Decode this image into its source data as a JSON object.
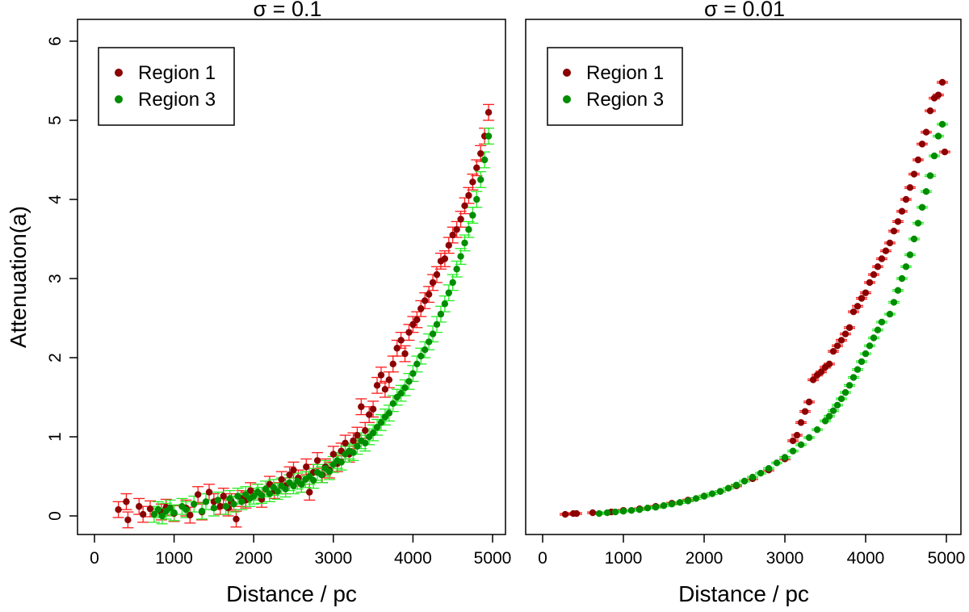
{
  "chart_data": [
    {
      "type": "scatter",
      "title": "σ = 0.1",
      "xlabel": "Distance / pc",
      "ylabel": "Attenuation(a)",
      "xlim": [
        -200,
        5200
      ],
      "ylim": [
        -0.23,
        6.2
      ],
      "xticks": [
        0,
        1000,
        2000,
        3000,
        4000,
        5000
      ],
      "yticks": [
        0,
        1,
        2,
        3,
        4,
        5,
        6
      ],
      "error_bars": true,
      "error_sigma": 0.1,
      "legend_position": "top-left",
      "series": [
        {
          "name": "Region 1",
          "point_color": "#8b0000",
          "errorbar_color": "#ff1a1a",
          "x": [
            300,
            400,
            420,
            560,
            610,
            700,
            840,
            900,
            1000,
            1150,
            1200,
            1300,
            1350,
            1440,
            1500,
            1580,
            1620,
            1680,
            1720,
            1780,
            1850,
            1900,
            1960,
            2050,
            2100,
            2200,
            2260,
            2350,
            2400,
            2450,
            2500,
            2560,
            2600,
            2660,
            2700,
            2750,
            2800,
            2860,
            2900,
            2950,
            3000,
            3050,
            3100,
            3150,
            3200,
            3250,
            3300,
            3350,
            3400,
            3450,
            3500,
            3550,
            3600,
            3650,
            3700,
            3750,
            3800,
            3850,
            3900,
            3950,
            4000,
            4050,
            4100,
            4150,
            4200,
            4250,
            4300,
            4350,
            4400,
            4450,
            4500,
            4550,
            4600,
            4650,
            4700,
            4750,
            4800,
            4850,
            4900,
            4950
          ],
          "y": [
            0.08,
            0.18,
            -0.05,
            0.12,
            0.02,
            0.09,
            0.05,
            0.11,
            0.03,
            0.1,
            0.01,
            0.27,
            0.05,
            0.3,
            0.18,
            0.12,
            0.25,
            0.1,
            0.18,
            -0.04,
            0.22,
            0.2,
            0.32,
            0.3,
            0.21,
            0.4,
            0.32,
            0.46,
            0.38,
            0.52,
            0.58,
            0.48,
            0.4,
            0.62,
            0.3,
            0.55,
            0.7,
            0.52,
            0.62,
            0.58,
            0.78,
            0.66,
            0.82,
            0.92,
            0.78,
            0.95,
            1.02,
            1.38,
            1.08,
            1.28,
            1.35,
            1.65,
            1.78,
            1.6,
            1.72,
            1.92,
            2.12,
            2.22,
            2.05,
            2.32,
            2.42,
            2.48,
            2.62,
            2.72,
            2.8,
            2.95,
            3.05,
            3.22,
            3.25,
            3.42,
            3.55,
            3.62,
            3.75,
            3.92,
            4.05,
            4.22,
            4.4,
            4.58,
            4.8,
            5.1
          ]
        },
        {
          "name": "Region 3",
          "point_color": "#008c00",
          "errorbar_color": "#22ee22",
          "x": [
            750,
            800,
            850,
            900,
            950,
            1000,
            1100,
            1150,
            1250,
            1350,
            1400,
            1500,
            1550,
            1650,
            1700,
            1750,
            1800,
            1850,
            1900,
            1950,
            2000,
            2050,
            2100,
            2150,
            2200,
            2250,
            2300,
            2350,
            2400,
            2450,
            2500,
            2550,
            2600,
            2650,
            2700,
            2750,
            2800,
            2850,
            2900,
            2950,
            3000,
            3050,
            3100,
            3150,
            3200,
            3250,
            3300,
            3350,
            3400,
            3450,
            3500,
            3550,
            3600,
            3650,
            3700,
            3750,
            3800,
            3850,
            3900,
            3950,
            4000,
            4050,
            4100,
            4150,
            4200,
            4250,
            4300,
            4350,
            4400,
            4450,
            4500,
            4550,
            4600,
            4650,
            4700,
            4750,
            4800,
            4850,
            4900,
            4950
          ],
          "y": [
            0.02,
            0.08,
            0.0,
            0.06,
            0.1,
            0.04,
            0.12,
            0.08,
            0.15,
            0.06,
            0.18,
            0.1,
            0.2,
            0.12,
            0.22,
            0.15,
            0.25,
            0.18,
            0.27,
            0.22,
            0.25,
            0.3,
            0.26,
            0.34,
            0.28,
            0.36,
            0.31,
            0.38,
            0.34,
            0.42,
            0.38,
            0.44,
            0.4,
            0.46,
            0.5,
            0.45,
            0.55,
            0.52,
            0.6,
            0.56,
            0.65,
            0.7,
            0.68,
            0.78,
            0.82,
            0.8,
            0.88,
            0.95,
            0.92,
            1.0,
            1.05,
            1.12,
            1.18,
            1.25,
            1.3,
            1.42,
            1.5,
            1.55,
            1.62,
            1.7,
            1.8,
            1.92,
            2.02,
            2.1,
            2.2,
            2.3,
            2.42,
            2.55,
            2.68,
            2.82,
            2.95,
            3.12,
            3.28,
            3.45,
            3.62,
            3.8,
            4.0,
            4.25,
            4.5,
            4.8
          ]
        }
      ]
    },
    {
      "type": "scatter",
      "title": "σ = 0.01",
      "xlabel": "Distance / pc",
      "ylabel": "",
      "xlim": [
        -200,
        5200
      ],
      "ylim": [
        -0.23,
        6.2
      ],
      "xticks": [
        0,
        1000,
        2000,
        3000,
        4000,
        5000
      ],
      "yticks": [],
      "error_bars": true,
      "error_sigma": 0.01,
      "legend_position": "top-left",
      "series": [
        {
          "name": "Region 1",
          "point_color": "#8b0000",
          "errorbar_color": "#ff1a1a",
          "x": [
            280,
            380,
            420,
            620,
            850,
            1000,
            1200,
            1400,
            1600,
            1800,
            2000,
            2200,
            2400,
            2600,
            2800,
            3000,
            3100,
            3150,
            3200,
            3250,
            3300,
            3350,
            3400,
            3450,
            3500,
            3550,
            3600,
            3650,
            3700,
            3750,
            3800,
            3850,
            3900,
            3950,
            4000,
            4050,
            4100,
            4150,
            4200,
            4250,
            4300,
            4350,
            4400,
            4450,
            4500,
            4550,
            4600,
            4650,
            4700,
            4750,
            4800,
            4850,
            4900,
            4950,
            4980
          ],
          "y": [
            0.02,
            0.03,
            0.03,
            0.04,
            0.05,
            0.07,
            0.09,
            0.12,
            0.16,
            0.2,
            0.25,
            0.31,
            0.38,
            0.47,
            0.58,
            0.72,
            0.95,
            1.02,
            1.18,
            1.32,
            1.44,
            1.72,
            1.78,
            1.82,
            1.88,
            1.92,
            2.08,
            2.15,
            2.22,
            2.3,
            2.38,
            2.58,
            2.65,
            2.75,
            2.82,
            2.95,
            3.05,
            3.15,
            3.25,
            3.35,
            3.45,
            3.6,
            3.72,
            3.85,
            4.0,
            4.15,
            4.32,
            4.5,
            4.7,
            4.85,
            5.12,
            5.28,
            5.32,
            5.48,
            4.6
          ]
        },
        {
          "name": "Region 3",
          "point_color": "#008c00",
          "errorbar_color": "#22ee22",
          "x": [
            700,
            800,
            900,
            1000,
            1100,
            1200,
            1300,
            1400,
            1500,
            1600,
            1700,
            1800,
            1900,
            2000,
            2100,
            2200,
            2300,
            2400,
            2500,
            2600,
            2700,
            2800,
            2900,
            3000,
            3100,
            3200,
            3300,
            3400,
            3500,
            3550,
            3600,
            3650,
            3700,
            3750,
            3800,
            3850,
            3900,
            3950,
            4000,
            4050,
            4100,
            4150,
            4200,
            4300,
            4350,
            4400,
            4450,
            4500,
            4550,
            4600,
            4650,
            4700,
            4750,
            4800,
            4850,
            4900,
            4950
          ],
          "y": [
            0.03,
            0.04,
            0.05,
            0.06,
            0.07,
            0.08,
            0.1,
            0.11,
            0.13,
            0.15,
            0.17,
            0.19,
            0.22,
            0.25,
            0.28,
            0.31,
            0.35,
            0.39,
            0.44,
            0.49,
            0.54,
            0.6,
            0.67,
            0.74,
            0.82,
            0.9,
            0.99,
            1.09,
            1.2,
            1.26,
            1.33,
            1.4,
            1.48,
            1.56,
            1.65,
            1.75,
            1.85,
            1.95,
            2.05,
            2.15,
            2.25,
            2.35,
            2.45,
            2.55,
            2.7,
            2.85,
            3.0,
            3.15,
            3.3,
            3.5,
            3.7,
            3.9,
            4.1,
            4.3,
            4.55,
            4.8,
            4.95
          ]
        }
      ]
    }
  ]
}
